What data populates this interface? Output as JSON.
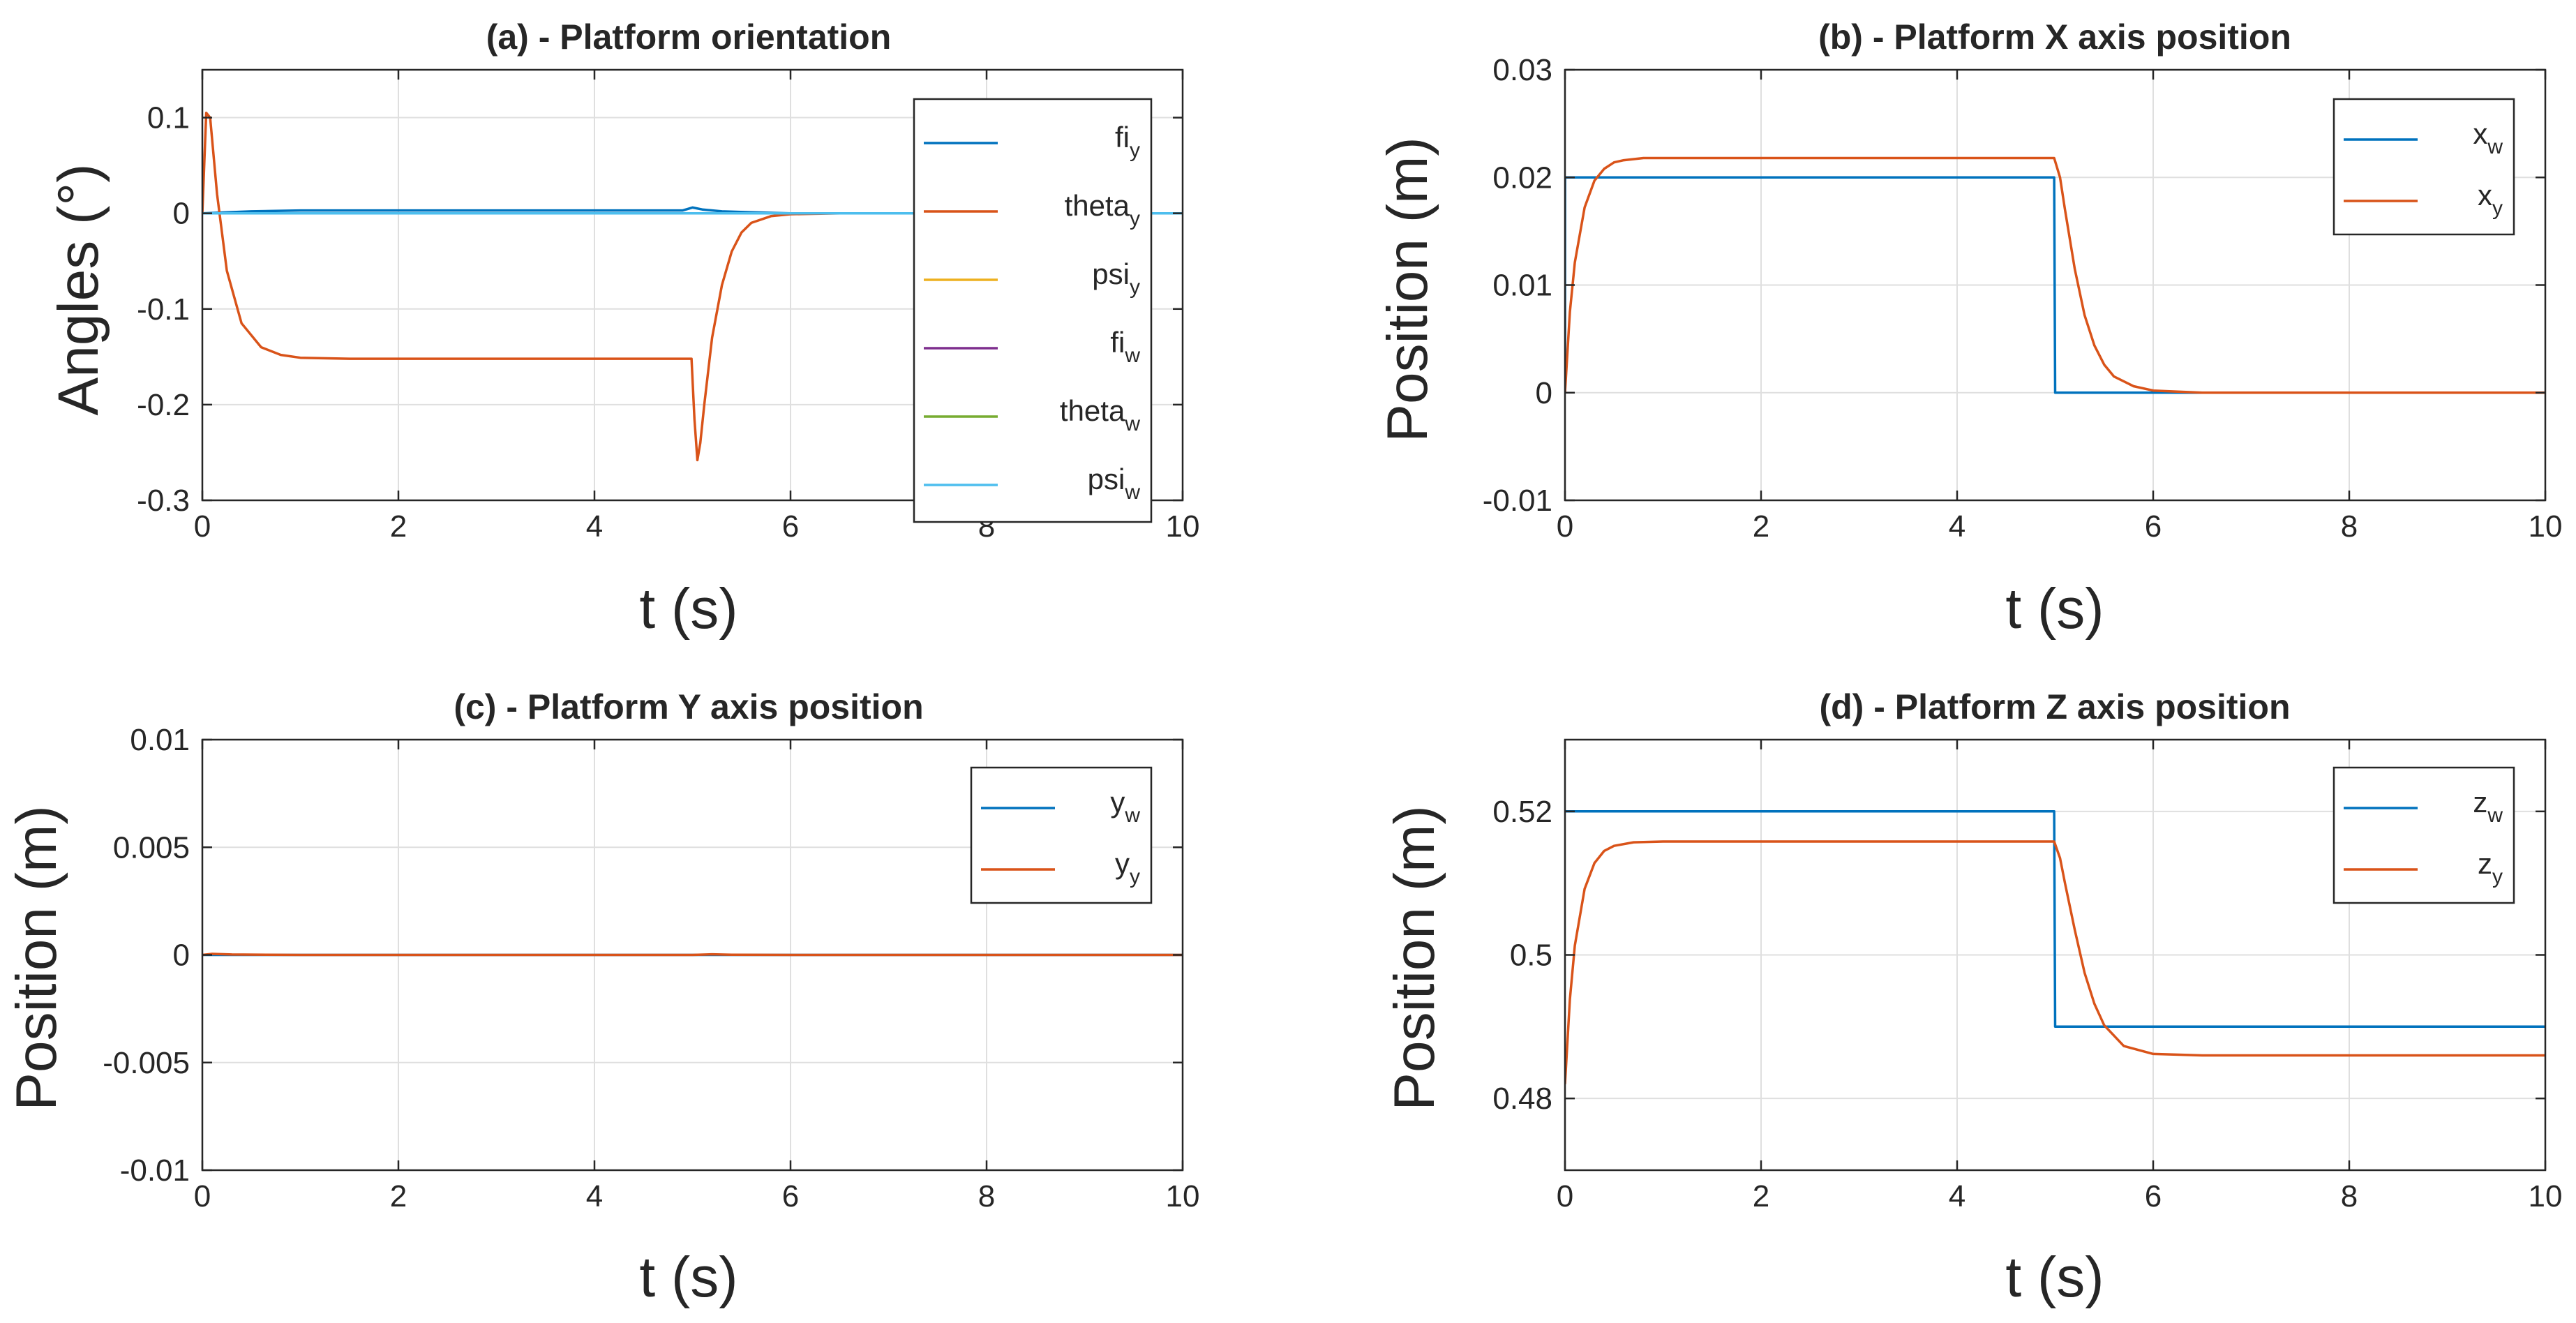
{
  "chart_data": [
    {
      "type": "line",
      "title": "(a) - Platform orientation",
      "xlabel": "t (s)",
      "ylabel": "Angles (°)",
      "xlim": [
        0,
        10
      ],
      "ylim": [
        -0.3,
        0.15
      ],
      "xticks": [
        0,
        2,
        4,
        6,
        8,
        10
      ],
      "xtick_labels": [
        "0",
        "2",
        "4",
        "6",
        "8",
        "10"
      ],
      "yticks": [
        0.1,
        0,
        -0.1,
        -0.2,
        -0.3
      ],
      "ytick_labels": [
        "0.1",
        "0",
        "-0.1",
        "-0.2",
        "-0.3"
      ],
      "grid": true,
      "legend": "top-right",
      "series": [
        {
          "name": "fi",
          "sub": "y",
          "color": "#0072BD",
          "x": [
            0,
            0.5,
            1,
            2,
            3,
            4,
            4.9,
            5.0,
            5.1,
            5.3,
            5.6,
            6,
            7,
            8,
            9,
            10
          ],
          "y": [
            0,
            0.002,
            0.003,
            0.003,
            0.003,
            0.003,
            0.003,
            0.006,
            0.004,
            0.002,
            0.001,
            0,
            0,
            0,
            0,
            0
          ]
        },
        {
          "name": "theta",
          "sub": "y",
          "color": "#D95319",
          "x": [
            0,
            0.04,
            0.08,
            0.15,
            0.25,
            0.4,
            0.6,
            0.8,
            1.0,
            1.5,
            2,
            3,
            4,
            4.99,
            5.02,
            5.05,
            5.08,
            5.12,
            5.2,
            5.3,
            5.4,
            5.5,
            5.6,
            5.8,
            6.0,
            6.5,
            7,
            8,
            9,
            10
          ],
          "y": [
            0,
            0.105,
            0.1,
            0.02,
            -0.06,
            -0.115,
            -0.14,
            -0.148,
            -0.151,
            -0.152,
            -0.152,
            -0.152,
            -0.152,
            -0.152,
            -0.215,
            -0.258,
            -0.24,
            -0.2,
            -0.13,
            -0.075,
            -0.04,
            -0.02,
            -0.01,
            -0.003,
            -0.001,
            0,
            0,
            0,
            0,
            0
          ]
        },
        {
          "name": "psi",
          "sub": "y",
          "color": "#EDB120",
          "x": [
            0,
            10
          ],
          "y": [
            0,
            0
          ]
        },
        {
          "name": "fi",
          "sub": "w",
          "color": "#7E2F8E",
          "x": [
            0,
            10
          ],
          "y": [
            0,
            0
          ]
        },
        {
          "name": "theta",
          "sub": "w",
          "color": "#77AC30",
          "x": [
            0,
            10
          ],
          "y": [
            0,
            0
          ]
        },
        {
          "name": "psi",
          "sub": "w",
          "color": "#4DBEEE",
          "x": [
            0,
            10
          ],
          "y": [
            0,
            0
          ]
        }
      ]
    },
    {
      "type": "line",
      "title": "(b) - Platform X axis position",
      "xlabel": "t (s)",
      "ylabel": "Position (m)",
      "xlim": [
        0,
        10
      ],
      "ylim": [
        -0.01,
        0.03
      ],
      "xticks": [
        0,
        2,
        4,
        6,
        8,
        10
      ],
      "xtick_labels": [
        "0",
        "2",
        "4",
        "6",
        "8",
        "10"
      ],
      "yticks": [
        0.03,
        0.02,
        0.01,
        0,
        -0.01
      ],
      "ytick_labels": [
        "0.03",
        "0.02",
        "0.01",
        "0",
        "-0.01"
      ],
      "grid": true,
      "legend": "top-right",
      "series": [
        {
          "name": "x",
          "sub": "w",
          "color": "#0072BD",
          "x": [
            0,
            0.001,
            4.99,
            5.0,
            10
          ],
          "y": [
            0,
            0.02,
            0.02,
            0,
            0
          ]
        },
        {
          "name": "x",
          "sub": "y",
          "color": "#D95319",
          "x": [
            0,
            0.05,
            0.1,
            0.2,
            0.3,
            0.4,
            0.5,
            0.6,
            0.8,
            1.0,
            1.5,
            2,
            3,
            4,
            4.99,
            5.05,
            5.1,
            5.2,
            5.3,
            5.4,
            5.5,
            5.6,
            5.8,
            6.0,
            6.5,
            7,
            8,
            9,
            10
          ],
          "y": [
            0,
            0.0075,
            0.0121,
            0.0172,
            0.0197,
            0.0208,
            0.0214,
            0.0216,
            0.0218,
            0.0218,
            0.0218,
            0.0218,
            0.0218,
            0.0218,
            0.0218,
            0.02,
            0.017,
            0.0115,
            0.0072,
            0.0044,
            0.0026,
            0.0015,
            0.0006,
            0.0002,
            0,
            0,
            0,
            0,
            0
          ]
        }
      ]
    },
    {
      "type": "line",
      "title": "(c) - Platform Y axis position",
      "xlabel": "t (s)",
      "ylabel": "Position (m)",
      "xlim": [
        0,
        10
      ],
      "ylim": [
        -0.01,
        0.01
      ],
      "xticks": [
        0,
        2,
        4,
        6,
        8,
        10
      ],
      "xtick_labels": [
        "0",
        "2",
        "4",
        "6",
        "8",
        "10"
      ],
      "yticks": [
        0.01,
        0.005,
        0,
        -0.005,
        -0.01
      ],
      "ytick_labels": [
        "0.01",
        "0.005",
        "0",
        "-0.005",
        "-0.01"
      ],
      "grid": true,
      "legend": "top-right",
      "series": [
        {
          "name": "y",
          "sub": "w",
          "color": "#0072BD",
          "x": [
            0,
            10
          ],
          "y": [
            0,
            0
          ]
        },
        {
          "name": "y",
          "sub": "y",
          "color": "#D95319",
          "x": [
            0,
            0.1,
            0.3,
            1,
            5,
            5.2,
            5.4,
            6,
            10
          ],
          "y": [
            0,
            5e-05,
            2e-05,
            0,
            0,
            3e-05,
            1e-05,
            0,
            0
          ]
        }
      ]
    },
    {
      "type": "line",
      "title": "(d) - Platform Z axis position",
      "xlabel": "t (s)",
      "ylabel": "Position (m)",
      "xlim": [
        0,
        10
      ],
      "ylim": [
        0.47,
        0.53
      ],
      "xticks": [
        0,
        2,
        4,
        6,
        8,
        10
      ],
      "xtick_labels": [
        "0",
        "2",
        "4",
        "6",
        "8",
        "10"
      ],
      "yticks": [
        0.52,
        0.5,
        0.48
      ],
      "ytick_labels": [
        "0.52",
        "0.5",
        "0.48"
      ],
      "grid": true,
      "legend": "top-right",
      "series": [
        {
          "name": "z",
          "sub": "w",
          "color": "#0072BD",
          "x": [
            0,
            4.99,
            5.0,
            10
          ],
          "y": [
            0.52,
            0.52,
            0.49,
            0.49
          ]
        },
        {
          "name": "z",
          "sub": "y",
          "color": "#D95319",
          "x": [
            0,
            0.05,
            0.1,
            0.2,
            0.3,
            0.4,
            0.5,
            0.7,
            1.0,
            1.5,
            2,
            3,
            4,
            4.99,
            5.05,
            5.1,
            5.2,
            5.3,
            5.4,
            5.5,
            5.7,
            6.0,
            6.5,
            7,
            8,
            9,
            10
          ],
          "y": [
            0.482,
            0.4938,
            0.5013,
            0.5092,
            0.5128,
            0.5145,
            0.5152,
            0.5157,
            0.5158,
            0.5158,
            0.5158,
            0.5158,
            0.5158,
            0.5158,
            0.5135,
            0.51,
            0.5035,
            0.4975,
            0.4932,
            0.4902,
            0.4873,
            0.4862,
            0.486,
            0.486,
            0.486,
            0.486,
            0.486
          ]
        }
      ]
    }
  ]
}
